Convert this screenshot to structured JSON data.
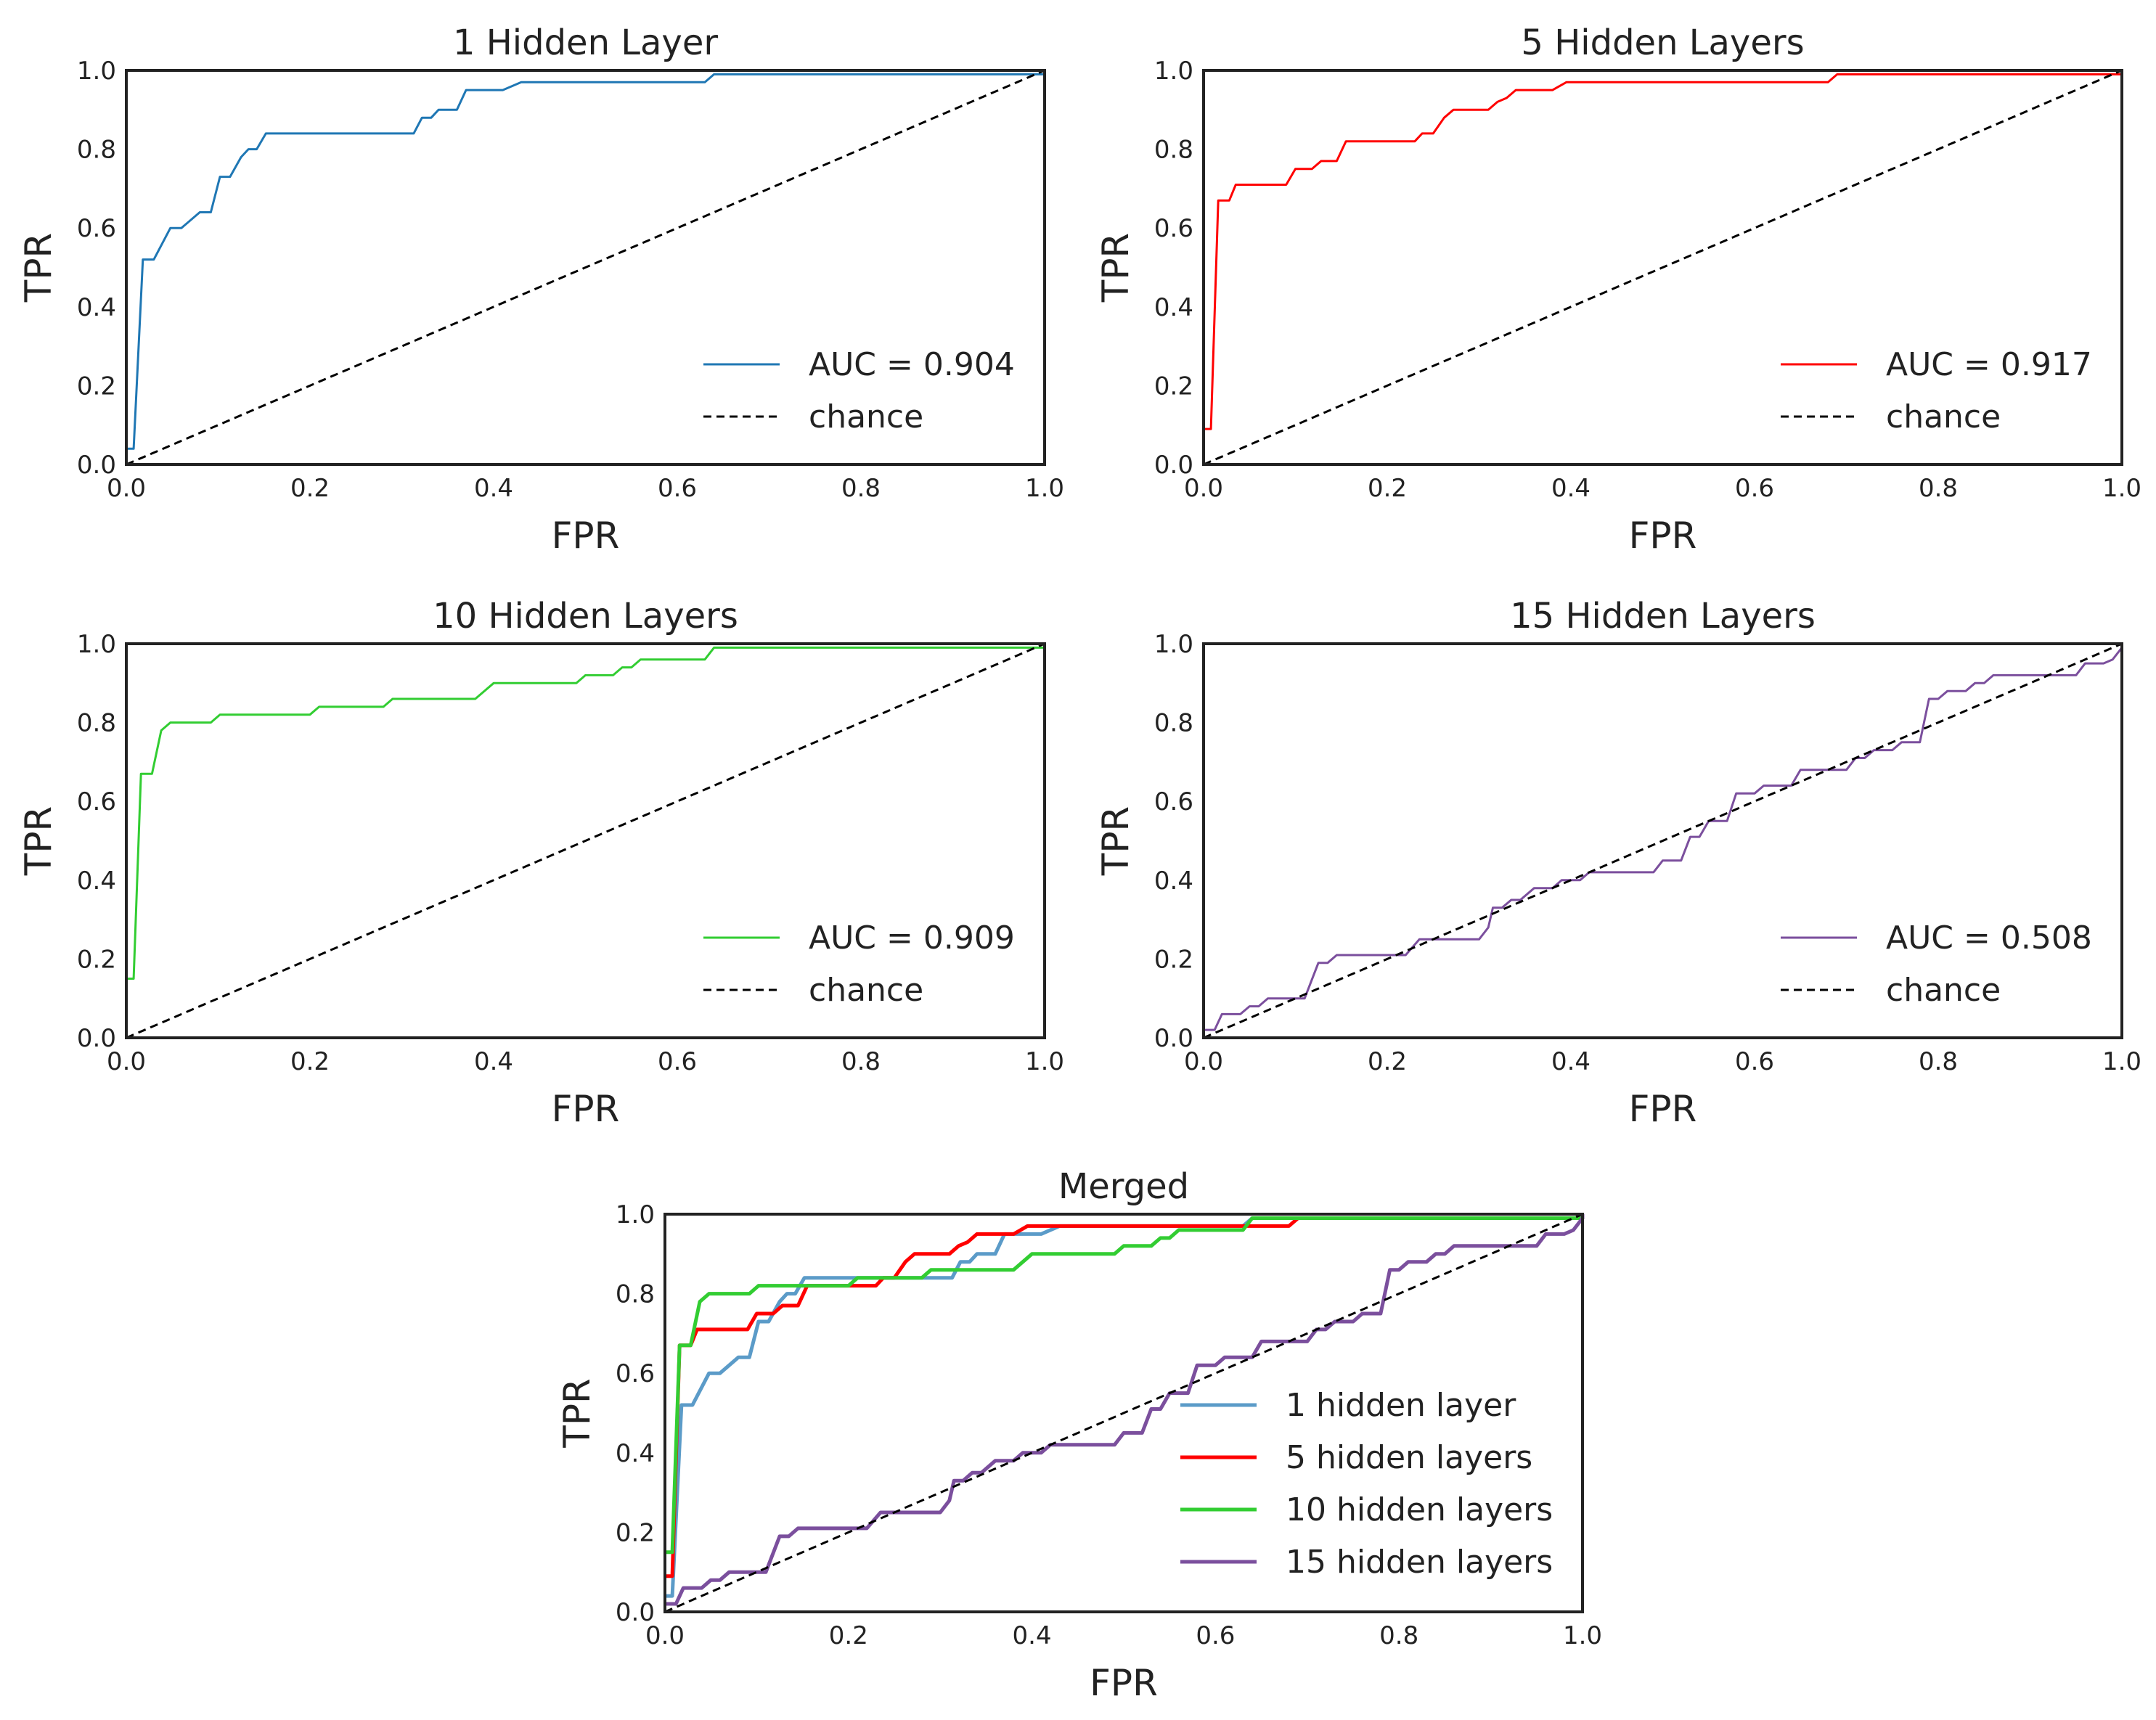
{
  "chart_data": [
    {
      "type": "line",
      "title": "1 Hidden Layer",
      "xlabel": "FPR",
      "ylabel": "TPR",
      "xlim": [
        0,
        1
      ],
      "ylim": [
        0,
        1
      ],
      "xticks": [
        "0.0",
        "0.2",
        "0.4",
        "0.6",
        "0.8",
        "1.0"
      ],
      "yticks": [
        "0.0",
        "0.2",
        "0.4",
        "0.6",
        "0.8",
        "1.0"
      ],
      "grid": false,
      "legend": "lower-right",
      "series": [
        {
          "name": "AUC = 0.904",
          "color": "#1f77b4",
          "points": [
            [
              0,
              0.04
            ],
            [
              0.008,
              0.04
            ],
            [
              0.018,
              0.52
            ],
            [
              0.03,
              0.52
            ],
            [
              0.048,
              0.6
            ],
            [
              0.06,
              0.6
            ],
            [
              0.08,
              0.64
            ],
            [
              0.092,
              0.64
            ],
            [
              0.102,
              0.73
            ],
            [
              0.113,
              0.73
            ],
            [
              0.125,
              0.78
            ],
            [
              0.133,
              0.8
            ],
            [
              0.142,
              0.8
            ],
            [
              0.152,
              0.84
            ],
            [
              0.313,
              0.84
            ],
            [
              0.322,
              0.88
            ],
            [
              0.332,
              0.88
            ],
            [
              0.34,
              0.9
            ],
            [
              0.36,
              0.9
            ],
            [
              0.37,
              0.95
            ],
            [
              0.41,
              0.95
            ],
            [
              0.43,
              0.97
            ],
            [
              0.63,
              0.97
            ],
            [
              0.64,
              0.99
            ],
            [
              1,
              0.99
            ],
            [
              1,
              1
            ]
          ]
        },
        {
          "name": "chance",
          "color": "#000000",
          "dashed": true,
          "points": [
            [
              0,
              0
            ],
            [
              1,
              1
            ]
          ]
        }
      ]
    },
    {
      "type": "line",
      "title": "5 Hidden Layers",
      "xlabel": "FPR",
      "ylabel": "TPR",
      "xlim": [
        0,
        1
      ],
      "ylim": [
        0,
        1
      ],
      "xticks": [
        "0.0",
        "0.2",
        "0.4",
        "0.6",
        "0.8",
        "1.0"
      ],
      "yticks": [
        "0.0",
        "0.2",
        "0.4",
        "0.6",
        "0.8",
        "1.0"
      ],
      "grid": false,
      "legend": "lower-right",
      "series": [
        {
          "name": "AUC = 0.917",
          "color": "#ff0000",
          "points": [
            [
              0,
              0.09
            ],
            [
              0.008,
              0.09
            ],
            [
              0.016,
              0.67
            ],
            [
              0.028,
              0.67
            ],
            [
              0.035,
              0.71
            ],
            [
              0.09,
              0.71
            ],
            [
              0.1,
              0.75
            ],
            [
              0.118,
              0.75
            ],
            [
              0.128,
              0.77
            ],
            [
              0.145,
              0.77
            ],
            [
              0.155,
              0.82
            ],
            [
              0.23,
              0.82
            ],
            [
              0.238,
              0.84
            ],
            [
              0.25,
              0.84
            ],
            [
              0.262,
              0.88
            ],
            [
              0.272,
              0.9
            ],
            [
              0.31,
              0.9
            ],
            [
              0.32,
              0.92
            ],
            [
              0.33,
              0.93
            ],
            [
              0.34,
              0.95
            ],
            [
              0.38,
              0.95
            ],
            [
              0.395,
              0.97
            ],
            [
              0.68,
              0.97
            ],
            [
              0.69,
              0.99
            ],
            [
              1,
              0.99
            ],
            [
              1,
              1
            ]
          ]
        },
        {
          "name": "chance",
          "color": "#000000",
          "dashed": true,
          "points": [
            [
              0,
              0
            ],
            [
              1,
              1
            ]
          ]
        }
      ]
    },
    {
      "type": "line",
      "title": "10 Hidden Layers",
      "xlabel": "FPR",
      "ylabel": "TPR",
      "xlim": [
        0,
        1
      ],
      "ylim": [
        0,
        1
      ],
      "xticks": [
        "0.0",
        "0.2",
        "0.4",
        "0.6",
        "0.8",
        "1.0"
      ],
      "yticks": [
        "0.0",
        "0.2",
        "0.4",
        "0.6",
        "0.8",
        "1.0"
      ],
      "grid": false,
      "legend": "lower-right",
      "series": [
        {
          "name": "AUC = 0.909",
          "color": "#32cd32",
          "points": [
            [
              0,
              0.15
            ],
            [
              0.008,
              0.15
            ],
            [
              0.016,
              0.67
            ],
            [
              0.028,
              0.67
            ],
            [
              0.038,
              0.78
            ],
            [
              0.048,
              0.8
            ],
            [
              0.092,
              0.8
            ],
            [
              0.102,
              0.82
            ],
            [
              0.2,
              0.82
            ],
            [
              0.21,
              0.84
            ],
            [
              0.28,
              0.84
            ],
            [
              0.29,
              0.86
            ],
            [
              0.38,
              0.86
            ],
            [
              0.4,
              0.9
            ],
            [
              0.49,
              0.9
            ],
            [
              0.5,
              0.92
            ],
            [
              0.53,
              0.92
            ],
            [
              0.54,
              0.94
            ],
            [
              0.55,
              0.94
            ],
            [
              0.56,
              0.96
            ],
            [
              0.63,
              0.96
            ],
            [
              0.64,
              0.99
            ],
            [
              1,
              0.99
            ],
            [
              1,
              1
            ]
          ]
        },
        {
          "name": "chance",
          "color": "#000000",
          "dashed": true,
          "points": [
            [
              0,
              0
            ],
            [
              1,
              1
            ]
          ]
        }
      ]
    },
    {
      "type": "line",
      "title": "15 Hidden Layers",
      "xlabel": "FPR",
      "ylabel": "TPR",
      "xlim": [
        0,
        1
      ],
      "ylim": [
        0,
        1
      ],
      "xticks": [
        "0.0",
        "0.2",
        "0.4",
        "0.6",
        "0.8",
        "1.0"
      ],
      "yticks": [
        "0.0",
        "0.2",
        "0.4",
        "0.6",
        "0.8",
        "1.0"
      ],
      "grid": false,
      "legend": "lower-right",
      "series": [
        {
          "name": "AUC = 0.508",
          "color": "#7b4f9d",
          "points": [
            [
              0,
              0.02
            ],
            [
              0.012,
              0.02
            ],
            [
              0.02,
              0.06
            ],
            [
              0.04,
              0.06
            ],
            [
              0.05,
              0.08
            ],
            [
              0.06,
              0.08
            ],
            [
              0.07,
              0.1
            ],
            [
              0.11,
              0.1
            ],
            [
              0.125,
              0.19
            ],
            [
              0.135,
              0.19
            ],
            [
              0.145,
              0.21
            ],
            [
              0.22,
              0.21
            ],
            [
              0.235,
              0.25
            ],
            [
              0.3,
              0.25
            ],
            [
              0.31,
              0.28
            ],
            [
              0.315,
              0.33
            ],
            [
              0.325,
              0.33
            ],
            [
              0.335,
              0.35
            ],
            [
              0.345,
              0.35
            ],
            [
              0.36,
              0.38
            ],
            [
              0.38,
              0.38
            ],
            [
              0.39,
              0.4
            ],
            [
              0.41,
              0.4
            ],
            [
              0.42,
              0.42
            ],
            [
              0.49,
              0.42
            ],
            [
              0.5,
              0.45
            ],
            [
              0.52,
              0.45
            ],
            [
              0.53,
              0.51
            ],
            [
              0.54,
              0.51
            ],
            [
              0.55,
              0.55
            ],
            [
              0.57,
              0.55
            ],
            [
              0.58,
              0.62
            ],
            [
              0.6,
              0.62
            ],
            [
              0.61,
              0.64
            ],
            [
              0.64,
              0.64
            ],
            [
              0.65,
              0.68
            ],
            [
              0.7,
              0.68
            ],
            [
              0.71,
              0.71
            ],
            [
              0.72,
              0.71
            ],
            [
              0.73,
              0.73
            ],
            [
              0.75,
              0.73
            ],
            [
              0.76,
              0.75
            ],
            [
              0.78,
              0.75
            ],
            [
              0.79,
              0.86
            ],
            [
              0.8,
              0.86
            ],
            [
              0.81,
              0.88
            ],
            [
              0.83,
              0.88
            ],
            [
              0.84,
              0.9
            ],
            [
              0.85,
              0.9
            ],
            [
              0.86,
              0.92
            ],
            [
              0.95,
              0.92
            ],
            [
              0.96,
              0.95
            ],
            [
              0.98,
              0.95
            ],
            [
              0.99,
              0.96
            ],
            [
              1,
              0.99
            ],
            [
              1,
              1
            ]
          ]
        },
        {
          "name": "chance",
          "color": "#000000",
          "dashed": true,
          "points": [
            [
              0,
              0
            ],
            [
              1,
              1
            ]
          ]
        }
      ]
    },
    {
      "type": "line",
      "title": "Merged",
      "xlabel": "FPR",
      "ylabel": "TPR",
      "xlim": [
        0,
        1
      ],
      "ylim": [
        0,
        1
      ],
      "xticks": [
        "0.0",
        "0.2",
        "0.4",
        "0.6",
        "0.8",
        "1.0"
      ],
      "yticks": [
        "0.0",
        "0.2",
        "0.4",
        "0.6",
        "0.8",
        "1.0"
      ],
      "grid": false,
      "legend": "lower-right",
      "series": [
        {
          "name": "1 hidden layer",
          "color": "#5b9bc8",
          "same_as": 0
        },
        {
          "name": "5 hidden layers",
          "color": "#ff0000",
          "same_as": 1
        },
        {
          "name": "10 hidden layers",
          "color": "#32cd32",
          "same_as": 2
        },
        {
          "name": "15 hidden layers",
          "color": "#7b4f9d",
          "same_as": 3
        },
        {
          "name": "",
          "color": "#000000",
          "dashed": true,
          "points": [
            [
              0,
              0
            ],
            [
              1,
              1
            ]
          ]
        }
      ]
    }
  ]
}
